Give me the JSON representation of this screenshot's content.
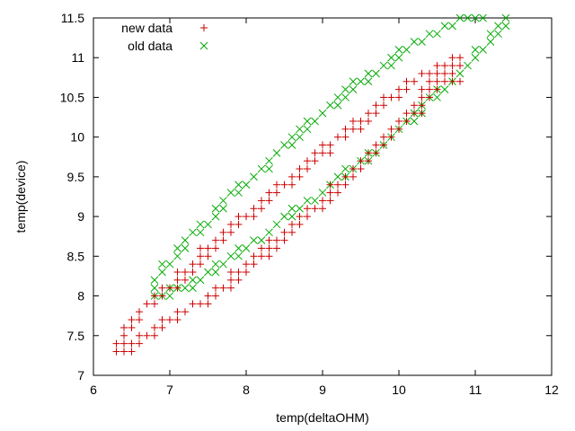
{
  "chart_data": {
    "type": "scatter",
    "title": "",
    "xlabel": "temp(deltaOHM)",
    "ylabel": "temp(device)",
    "xlim": [
      6,
      12
    ],
    "ylim": [
      7,
      11.5
    ],
    "xticks": [
      6,
      7,
      8,
      9,
      10,
      11,
      12
    ],
    "yticks": [
      7,
      7.5,
      8,
      8.5,
      9,
      9.5,
      10,
      10.5,
      11,
      11.5
    ],
    "xtick_labels": [
      "6",
      "7",
      "8",
      "9",
      "10",
      "11",
      "12"
    ],
    "ytick_labels": [
      "7",
      "7.5",
      "8",
      "8.5",
      "9",
      "9.5",
      "10",
      "10.5",
      "11",
      "11.5"
    ],
    "grid": false,
    "legend_position": "top-left",
    "series": [
      {
        "name": "new data",
        "marker": "plus",
        "color": "#cc0000",
        "points": [
          [
            6.3,
            7.3
          ],
          [
            6.4,
            7.3
          ],
          [
            6.5,
            7.3
          ],
          [
            6.3,
            7.4
          ],
          [
            6.4,
            7.4
          ],
          [
            6.5,
            7.4
          ],
          [
            6.6,
            7.4
          ],
          [
            6.4,
            7.5
          ],
          [
            6.6,
            7.5
          ],
          [
            6.7,
            7.5
          ],
          [
            6.8,
            7.5
          ],
          [
            6.4,
            7.6
          ],
          [
            6.5,
            7.6
          ],
          [
            6.8,
            7.6
          ],
          [
            6.9,
            7.6
          ],
          [
            6.5,
            7.7
          ],
          [
            6.6,
            7.7
          ],
          [
            6.9,
            7.7
          ],
          [
            7.0,
            7.7
          ],
          [
            7.1,
            7.7
          ],
          [
            6.6,
            7.8
          ],
          [
            7.1,
            7.8
          ],
          [
            7.2,
            7.8
          ],
          [
            6.7,
            7.9
          ],
          [
            6.8,
            7.9
          ],
          [
            7.3,
            7.9
          ],
          [
            7.4,
            7.9
          ],
          [
            7.5,
            7.9
          ],
          [
            6.8,
            8.0
          ],
          [
            6.9,
            8.0
          ],
          [
            7.5,
            8.0
          ],
          [
            7.6,
            8.0
          ],
          [
            6.9,
            8.1
          ],
          [
            7.0,
            8.1
          ],
          [
            7.1,
            8.1
          ],
          [
            7.6,
            8.1
          ],
          [
            7.7,
            8.1
          ],
          [
            7.8,
            8.1
          ],
          [
            7.1,
            8.2
          ],
          [
            7.2,
            8.2
          ],
          [
            7.8,
            8.2
          ],
          [
            7.9,
            8.2
          ],
          [
            7.1,
            8.3
          ],
          [
            7.2,
            8.3
          ],
          [
            7.3,
            8.3
          ],
          [
            7.8,
            8.3
          ],
          [
            7.9,
            8.3
          ],
          [
            8.0,
            8.3
          ],
          [
            7.3,
            8.4
          ],
          [
            7.4,
            8.4
          ],
          [
            8.0,
            8.4
          ],
          [
            8.1,
            8.4
          ],
          [
            7.4,
            8.5
          ],
          [
            7.5,
            8.5
          ],
          [
            8.1,
            8.5
          ],
          [
            8.2,
            8.5
          ],
          [
            8.3,
            8.5
          ],
          [
            7.4,
            8.6
          ],
          [
            7.5,
            8.6
          ],
          [
            7.6,
            8.6
          ],
          [
            8.2,
            8.6
          ],
          [
            8.3,
            8.6
          ],
          [
            8.4,
            8.6
          ],
          [
            7.6,
            8.7
          ],
          [
            7.7,
            8.7
          ],
          [
            8.3,
            8.7
          ],
          [
            8.4,
            8.7
          ],
          [
            8.5,
            8.7
          ],
          [
            7.7,
            8.8
          ],
          [
            7.8,
            8.8
          ],
          [
            8.5,
            8.8
          ],
          [
            8.6,
            8.8
          ],
          [
            7.8,
            8.9
          ],
          [
            7.9,
            8.9
          ],
          [
            8.6,
            8.9
          ],
          [
            8.7,
            8.9
          ],
          [
            7.9,
            9.0
          ],
          [
            8.0,
            9.0
          ],
          [
            8.1,
            9.0
          ],
          [
            8.7,
            9.0
          ],
          [
            8.8,
            9.0
          ],
          [
            8.1,
            9.1
          ],
          [
            8.2,
            9.1
          ],
          [
            8.8,
            9.1
          ],
          [
            8.9,
            9.1
          ],
          [
            9.0,
            9.1
          ],
          [
            8.2,
            9.2
          ],
          [
            8.3,
            9.2
          ],
          [
            9.0,
            9.2
          ],
          [
            9.1,
            9.2
          ],
          [
            8.3,
            9.3
          ],
          [
            8.4,
            9.3
          ],
          [
            9.1,
            9.3
          ],
          [
            9.2,
            9.3
          ],
          [
            8.4,
            9.4
          ],
          [
            8.5,
            9.4
          ],
          [
            8.6,
            9.4
          ],
          [
            9.1,
            9.4
          ],
          [
            9.2,
            9.4
          ],
          [
            9.3,
            9.4
          ],
          [
            8.6,
            9.5
          ],
          [
            8.7,
            9.5
          ],
          [
            9.3,
            9.5
          ],
          [
            9.4,
            9.5
          ],
          [
            8.7,
            9.6
          ],
          [
            8.8,
            9.6
          ],
          [
            9.4,
            9.6
          ],
          [
            9.5,
            9.6
          ],
          [
            8.8,
            9.7
          ],
          [
            8.9,
            9.7
          ],
          [
            9.5,
            9.7
          ],
          [
            9.6,
            9.7
          ],
          [
            8.9,
            9.8
          ],
          [
            9.0,
            9.8
          ],
          [
            9.1,
            9.8
          ],
          [
            9.6,
            9.8
          ],
          [
            9.7,
            9.8
          ],
          [
            9.0,
            9.9
          ],
          [
            9.1,
            9.9
          ],
          [
            9.7,
            9.9
          ],
          [
            9.8,
            9.9
          ],
          [
            9.2,
            10.0
          ],
          [
            9.3,
            10.0
          ],
          [
            9.8,
            10.0
          ],
          [
            9.9,
            10.0
          ],
          [
            9.3,
            10.1
          ],
          [
            9.4,
            10.1
          ],
          [
            9.5,
            10.1
          ],
          [
            9.9,
            10.1
          ],
          [
            10.0,
            10.1
          ],
          [
            9.4,
            10.2
          ],
          [
            9.5,
            10.2
          ],
          [
            9.6,
            10.2
          ],
          [
            10.0,
            10.2
          ],
          [
            10.1,
            10.2
          ],
          [
            9.6,
            10.3
          ],
          [
            9.7,
            10.3
          ],
          [
            10.1,
            10.3
          ],
          [
            10.2,
            10.3
          ],
          [
            10.3,
            10.3
          ],
          [
            9.7,
            10.4
          ],
          [
            9.8,
            10.4
          ],
          [
            10.2,
            10.4
          ],
          [
            10.3,
            10.4
          ],
          [
            9.8,
            10.5
          ],
          [
            9.9,
            10.5
          ],
          [
            10.0,
            10.5
          ],
          [
            10.3,
            10.5
          ],
          [
            10.4,
            10.5
          ],
          [
            10.0,
            10.6
          ],
          [
            10.1,
            10.6
          ],
          [
            10.3,
            10.6
          ],
          [
            10.4,
            10.6
          ],
          [
            10.5,
            10.6
          ],
          [
            10.1,
            10.7
          ],
          [
            10.2,
            10.7
          ],
          [
            10.4,
            10.7
          ],
          [
            10.5,
            10.7
          ],
          [
            10.6,
            10.7
          ],
          [
            10.7,
            10.7
          ],
          [
            10.8,
            10.7
          ],
          [
            10.3,
            10.8
          ],
          [
            10.4,
            10.8
          ],
          [
            10.5,
            10.8
          ],
          [
            10.6,
            10.8
          ],
          [
            10.7,
            10.8
          ],
          [
            10.5,
            10.9
          ],
          [
            10.6,
            10.9
          ],
          [
            10.7,
            10.9
          ],
          [
            10.8,
            10.9
          ],
          [
            10.7,
            11.0
          ],
          [
            10.8,
            11.0
          ]
        ]
      },
      {
        "name": "old data",
        "marker": "cross",
        "color": "#00aa00",
        "points": [
          [
            6.8,
            8.2
          ],
          [
            6.9,
            8.3
          ],
          [
            6.9,
            8.4
          ],
          [
            7.0,
            8.4
          ],
          [
            7.1,
            8.5
          ],
          [
            7.1,
            8.6
          ],
          [
            7.2,
            8.6
          ],
          [
            7.2,
            8.7
          ],
          [
            7.3,
            8.8
          ],
          [
            7.4,
            8.8
          ],
          [
            7.4,
            8.9
          ],
          [
            7.5,
            8.9
          ],
          [
            7.6,
            9.0
          ],
          [
            7.6,
            9.1
          ],
          [
            7.7,
            9.1
          ],
          [
            7.7,
            9.2
          ],
          [
            7.8,
            9.3
          ],
          [
            7.9,
            9.3
          ],
          [
            7.9,
            9.4
          ],
          [
            8.0,
            9.4
          ],
          [
            8.1,
            9.5
          ],
          [
            8.2,
            9.6
          ],
          [
            8.3,
            9.6
          ],
          [
            8.3,
            9.7
          ],
          [
            8.4,
            9.8
          ],
          [
            8.5,
            9.9
          ],
          [
            8.6,
            9.9
          ],
          [
            8.6,
            10.0
          ],
          [
            8.7,
            10.0
          ],
          [
            8.7,
            10.1
          ],
          [
            8.8,
            10.1
          ],
          [
            8.8,
            10.2
          ],
          [
            8.9,
            10.2
          ],
          [
            9.0,
            10.3
          ],
          [
            9.1,
            10.4
          ],
          [
            9.2,
            10.4
          ],
          [
            9.2,
            10.5
          ],
          [
            9.3,
            10.5
          ],
          [
            9.3,
            10.6
          ],
          [
            9.4,
            10.6
          ],
          [
            9.4,
            10.7
          ],
          [
            9.5,
            10.7
          ],
          [
            9.6,
            10.7
          ],
          [
            9.6,
            10.8
          ],
          [
            9.7,
            10.8
          ],
          [
            9.8,
            10.9
          ],
          [
            9.9,
            10.9
          ],
          [
            9.9,
            11.0
          ],
          [
            10.0,
            11.0
          ],
          [
            10.0,
            11.1
          ],
          [
            10.1,
            11.1
          ],
          [
            10.2,
            11.2
          ],
          [
            10.3,
            11.2
          ],
          [
            10.4,
            11.3
          ],
          [
            10.5,
            11.3
          ],
          [
            10.6,
            11.4
          ],
          [
            10.7,
            11.4
          ],
          [
            10.8,
            11.5
          ],
          [
            10.9,
            11.5
          ],
          [
            11.0,
            11.5
          ],
          [
            11.1,
            11.5
          ],
          [
            6.8,
            8.0
          ],
          [
            6.8,
            8.1
          ],
          [
            6.9,
            8.0
          ],
          [
            7.0,
            8.0
          ],
          [
            7.0,
            8.1
          ],
          [
            7.1,
            8.1
          ],
          [
            7.2,
            8.1
          ],
          [
            7.3,
            8.1
          ],
          [
            7.3,
            8.2
          ],
          [
            7.4,
            8.2
          ],
          [
            7.5,
            8.3
          ],
          [
            7.6,
            8.3
          ],
          [
            7.6,
            8.4
          ],
          [
            7.7,
            8.4
          ],
          [
            7.8,
            8.5
          ],
          [
            7.9,
            8.5
          ],
          [
            7.9,
            8.6
          ],
          [
            8.0,
            8.6
          ],
          [
            8.1,
            8.7
          ],
          [
            8.2,
            8.7
          ],
          [
            8.3,
            8.8
          ],
          [
            8.4,
            8.9
          ],
          [
            8.5,
            9.0
          ],
          [
            8.6,
            9.0
          ],
          [
            8.6,
            9.1
          ],
          [
            8.7,
            9.1
          ],
          [
            8.8,
            9.2
          ],
          [
            8.9,
            9.2
          ],
          [
            9.0,
            9.3
          ],
          [
            9.1,
            9.4
          ],
          [
            9.2,
            9.5
          ],
          [
            9.3,
            9.5
          ],
          [
            9.3,
            9.6
          ],
          [
            9.4,
            9.6
          ],
          [
            9.5,
            9.7
          ],
          [
            9.6,
            9.7
          ],
          [
            9.6,
            9.8
          ],
          [
            9.7,
            9.8
          ],
          [
            9.8,
            9.9
          ],
          [
            9.9,
            10.0
          ],
          [
            10.0,
            10.1
          ],
          [
            10.1,
            10.2
          ],
          [
            10.2,
            10.2
          ],
          [
            10.2,
            10.3
          ],
          [
            10.3,
            10.3
          ],
          [
            10.3,
            10.4
          ],
          [
            10.4,
            10.5
          ],
          [
            10.5,
            10.5
          ],
          [
            10.5,
            10.6
          ],
          [
            10.6,
            10.6
          ],
          [
            10.7,
            10.7
          ],
          [
            10.8,
            10.8
          ],
          [
            10.9,
            10.9
          ],
          [
            11.0,
            11.0
          ],
          [
            11.0,
            11.1
          ],
          [
            11.1,
            11.1
          ],
          [
            11.2,
            11.2
          ],
          [
            11.2,
            11.3
          ],
          [
            11.3,
            11.3
          ],
          [
            11.3,
            11.4
          ],
          [
            11.4,
            11.4
          ],
          [
            11.4,
            11.5
          ]
        ]
      }
    ]
  }
}
